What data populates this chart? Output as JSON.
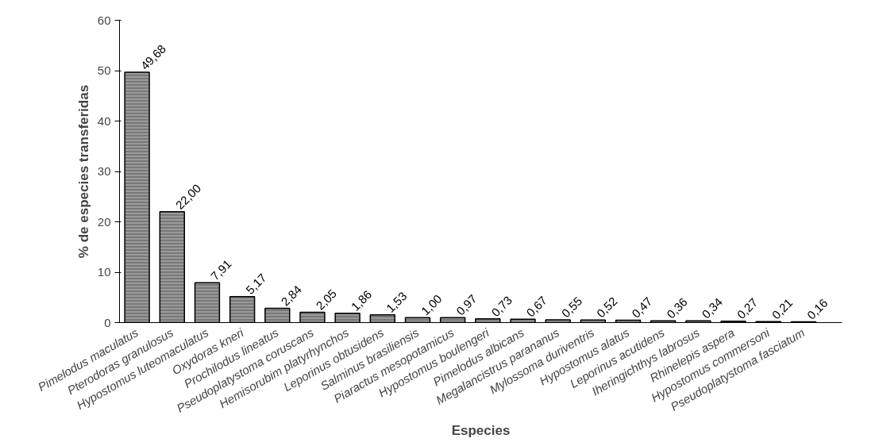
{
  "chart_data": {
    "type": "bar",
    "xlabel": "Especies",
    "ylabel": "% de especies transferidas",
    "categories": [
      "Pimelodus maculatus",
      "Pterodoras granulosus",
      "Hypostomus luteomaculatus",
      "Oxydoras kneri",
      "Prochilodus lineatus",
      "Pseudoplatystoma coruscans",
      "Hemisorubim platyrhynchos",
      "Leporinus obtusidens",
      "Salminus brasiliensis",
      "Piaractus mesopotamicus",
      "Hypostomus boulengeri",
      "Pimelodus albicans",
      "Megalancistrus parananus",
      "Mylossoma duriventris",
      "Hypostomus alatus",
      "Leporinus acutidens",
      "Iheringichthys labrosus",
      "Rhinelepis aspera",
      "Hypostomus commersoni",
      "Pseudoplatystoma fasciatum"
    ],
    "values": [
      49.68,
      22.0,
      7.91,
      5.17,
      2.84,
      2.05,
      1.86,
      1.53,
      1.0,
      0.97,
      0.73,
      0.67,
      0.55,
      0.52,
      0.47,
      0.36,
      0.34,
      0.27,
      0.21,
      0.16
    ],
    "value_labels": [
      "49,68",
      "22,00",
      "7,91",
      "5,17",
      "2,84",
      "2,05",
      "1,86",
      "1,53",
      "1,00",
      "0,97",
      "0,73",
      "0,67",
      "0,55",
      "0,52",
      "0,47",
      "0,36",
      "0,34",
      "0,27",
      "0,21",
      "0,16"
    ],
    "color": "#9a9a9a",
    "ylim": [
      0,
      60
    ],
    "yticks": [
      0,
      10,
      20,
      30,
      40,
      50,
      60
    ],
    "grid": false
  }
}
